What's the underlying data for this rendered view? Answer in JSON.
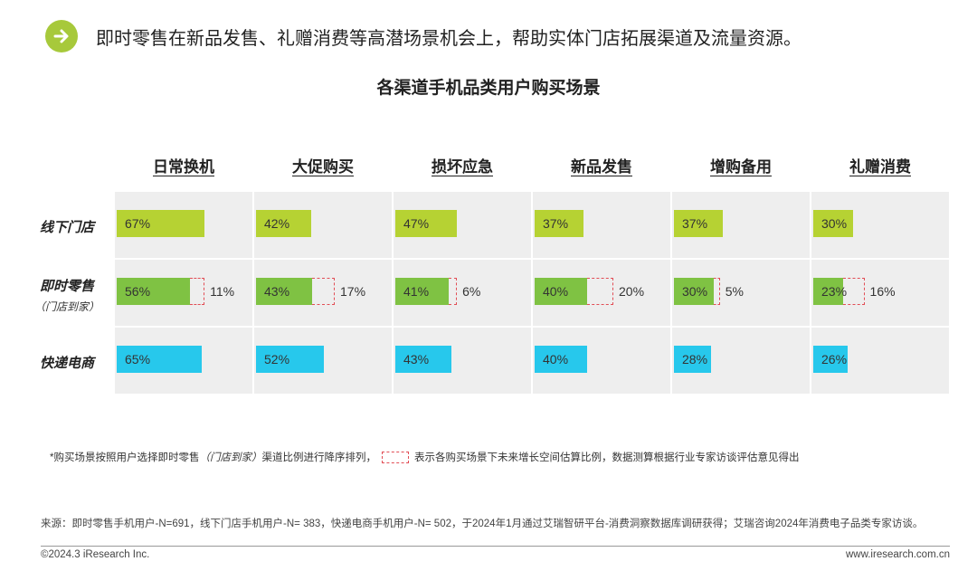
{
  "header": {
    "icon": "arrow-right-icon",
    "text": "即时零售在新品发售、礼赠消费等高潜场景机会上，帮助实体门店拓展渠道及流量资源。"
  },
  "chart_data": {
    "type": "bar",
    "title": "各渠道手机品类用户购买场景",
    "categories": [
      "日常换机",
      "大促购买",
      "损坏应急",
      "新品发售",
      "增购备用",
      "礼赠消费"
    ],
    "rows": [
      {
        "label": "线下门店",
        "sublabel": "",
        "color": "#b6d233",
        "key": "offline",
        "values": [
          67,
          42,
          47,
          37,
          37,
          30
        ],
        "growth": []
      },
      {
        "label": "即时零售",
        "sublabel": "（门店到家）",
        "color": "#7fc243",
        "key": "instant",
        "values": [
          56,
          43,
          41,
          40,
          30,
          23
        ],
        "growth": [
          11,
          17,
          6,
          20,
          5,
          16
        ]
      },
      {
        "label": "快递电商",
        "sublabel": "",
        "color": "#27c8ec",
        "key": "express",
        "values": [
          65,
          52,
          43,
          40,
          28,
          26
        ],
        "growth": []
      }
    ],
    "unit": "%",
    "value_max": 100,
    "growth_color": "#e24d55"
  },
  "footnote": {
    "part1": "*购买场景按照用户选择即时零售",
    "part2": "（门店到家）",
    "part3": "渠道比例进行降序排列，",
    "part4": "表示各购买场景下未来增长空间估算比例，数据测算根据行业专家访谈评估意见得出"
  },
  "source": "来源：即时零售手机用户-N=691，线下门店手机用户-N= 383，快递电商手机用户-N= 502，于2024年1月通过艾瑞智研平台-消费洞察数据库调研获得；艾瑞咨询2024年消费电子品类专家访谈。",
  "copyright": "©2024.3 iResearch Inc.",
  "website": "www.iresearch.com.cn"
}
